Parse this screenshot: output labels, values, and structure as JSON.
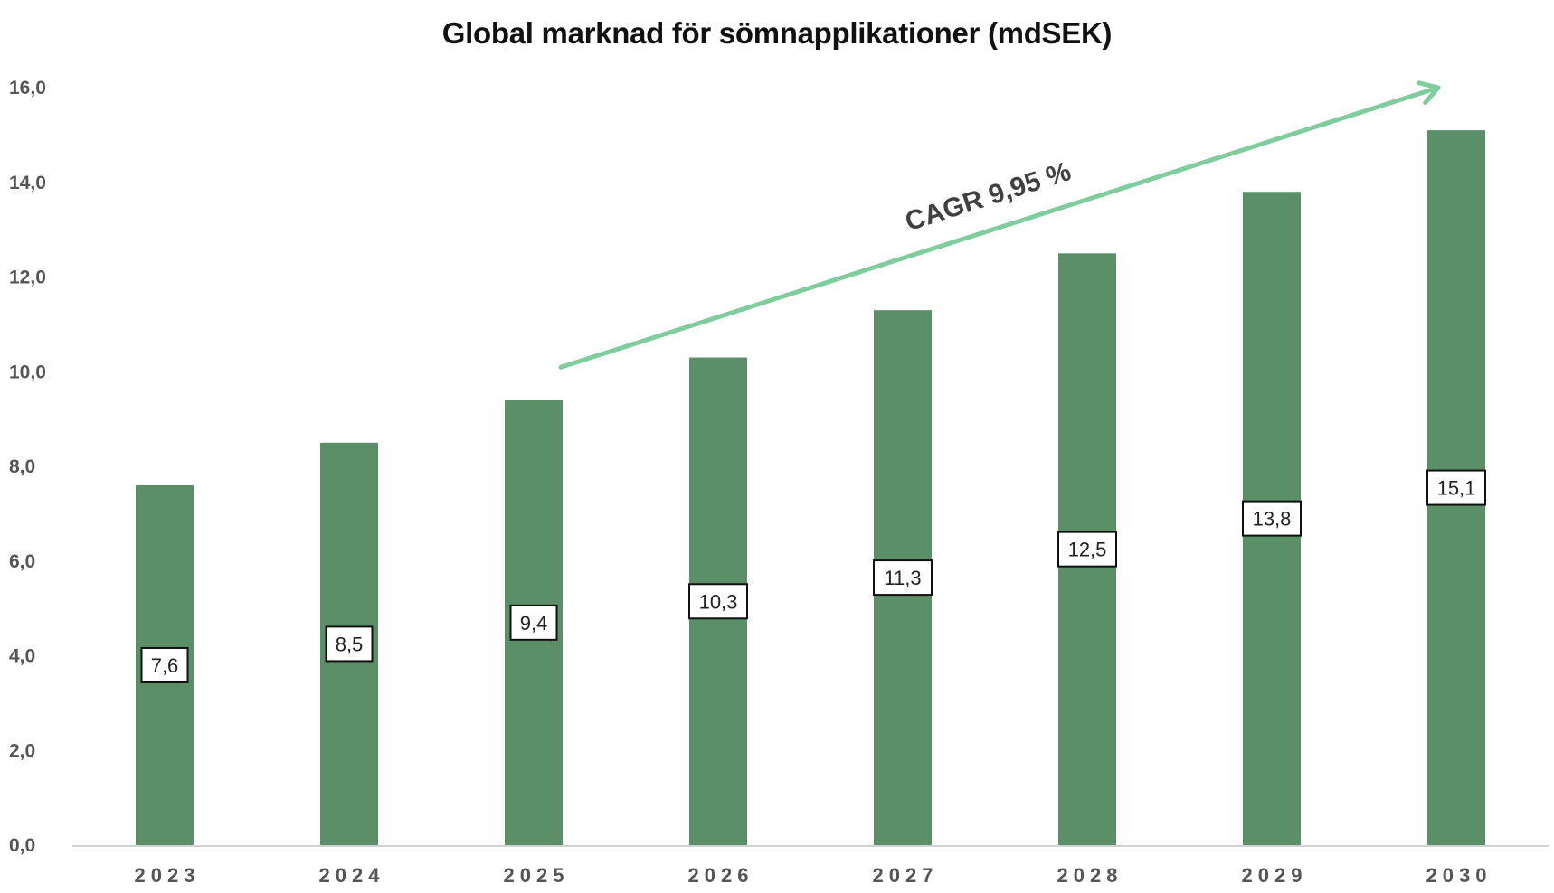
{
  "chart_data": {
    "type": "bar",
    "title": "Global marknad för sömnapplikationer (mdSEK)",
    "xlabel": "",
    "ylabel": "",
    "categories": [
      "2023",
      "2024",
      "2025",
      "2026",
      "2027",
      "2028",
      "2029",
      "2030"
    ],
    "values": [
      7.6,
      8.5,
      9.4,
      10.3,
      11.3,
      12.5,
      13.8,
      15.1
    ],
    "data_labels": [
      "",
      "8,5",
      "9,4",
      "10,3",
      "11,3",
      "12,5",
      "13,8",
      "15,1"
    ],
    "first_data_label": "7,6",
    "ylim": [
      0,
      16
    ],
    "yticks": [
      0,
      2,
      4,
      6,
      8,
      10,
      12,
      14,
      16
    ],
    "ytick_labels": [
      "0,0",
      "2,0",
      "4,0",
      "6,0",
      "8,0",
      "10,0",
      "12,0",
      "14,0",
      "16,0"
    ],
    "grid": false,
    "legend": "none",
    "bar_color": "#5a8f67",
    "annotation": {
      "text": "CAGR 9,95 %",
      "arrow_color": "#7fcc9c",
      "arrow_from": {
        "x": "2025",
        "y": 10.0
      },
      "arrow_to": {
        "x": "2030",
        "y": 16.0
      }
    }
  }
}
